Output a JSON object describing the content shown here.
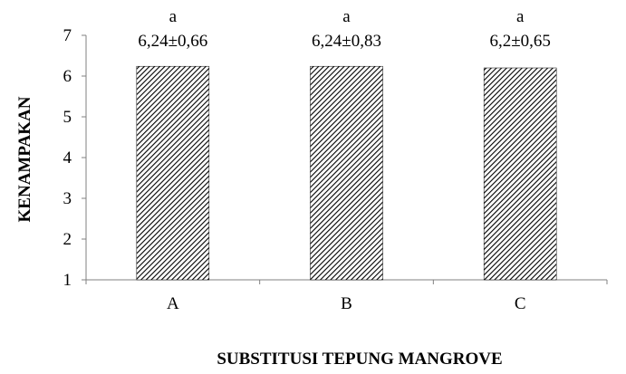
{
  "chart_data": {
    "type": "bar",
    "categories": [
      "A",
      "B",
      "C"
    ],
    "values": [
      6.24,
      6.24,
      6.2
    ],
    "data_labels": [
      "6,24±0,66",
      "6,24±0,83",
      "6,2±0,65"
    ],
    "significance_letters": [
      "a",
      "a",
      "a"
    ],
    "xlabel": "SUBSTITUSI TEPUNG MANGROVE",
    "ylabel": "KENAMPAKAN",
    "ylim": [
      1,
      7
    ],
    "yticks": [
      "1",
      "2",
      "3",
      "4",
      "5",
      "6",
      "7"
    ],
    "grid": false,
    "legend": "none",
    "bar_fill": "diagonal hatch",
    "colors": {
      "bar_pattern": "#000000",
      "bar_background": "#ffffff",
      "axis": "#808080"
    }
  }
}
